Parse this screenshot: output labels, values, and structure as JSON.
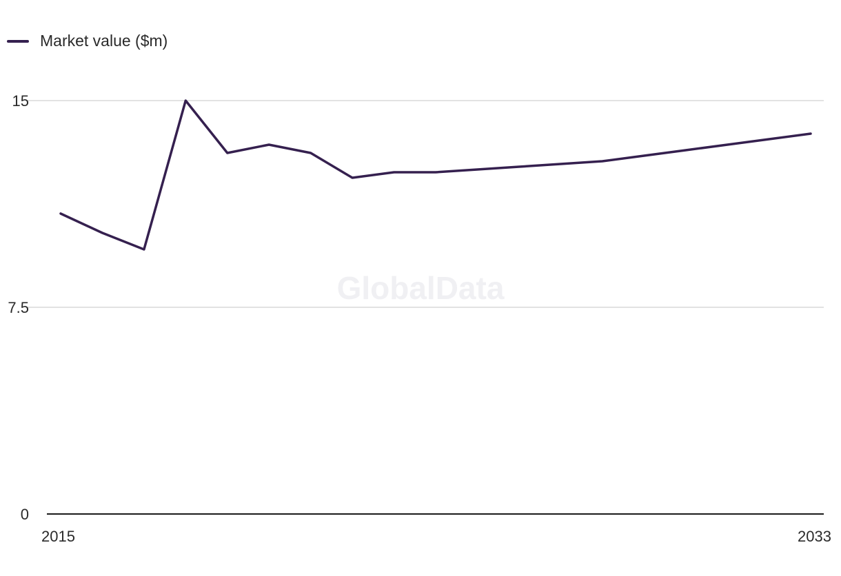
{
  "chart_data": {
    "type": "line",
    "x": [
      2015,
      2016,
      2017,
      2018,
      2019,
      2020,
      2021,
      2022,
      2023,
      2024,
      2025,
      2026,
      2027,
      2028,
      2029,
      2030,
      2031,
      2032,
      2033
    ],
    "series": [
      {
        "name": "Market value ($m)",
        "values": [
          10.9,
          10.2,
          9.6,
          15.0,
          13.1,
          13.4,
          13.1,
          12.2,
          12.4,
          12.4,
          12.5,
          12.6,
          12.7,
          12.8,
          13.0,
          13.2,
          13.4,
          13.6,
          13.8
        ]
      }
    ],
    "xlabel": "",
    "ylabel": "",
    "ylim": [
      0,
      15
    ],
    "y_ticks": [
      {
        "value": 0,
        "label": "0"
      },
      {
        "value": 7.5,
        "label": "7.5"
      },
      {
        "value": 15,
        "label": "15"
      }
    ],
    "x_tick_labels": [
      {
        "value": 2015,
        "label": "2015"
      },
      {
        "value": 2033,
        "label": "2033"
      }
    ],
    "grid": true,
    "legend_position": "top-left",
    "watermark": "GlobalData",
    "colors": {
      "line": "#35204f",
      "grid": "#d9d9d9",
      "axis": "#1a1a1a"
    }
  }
}
